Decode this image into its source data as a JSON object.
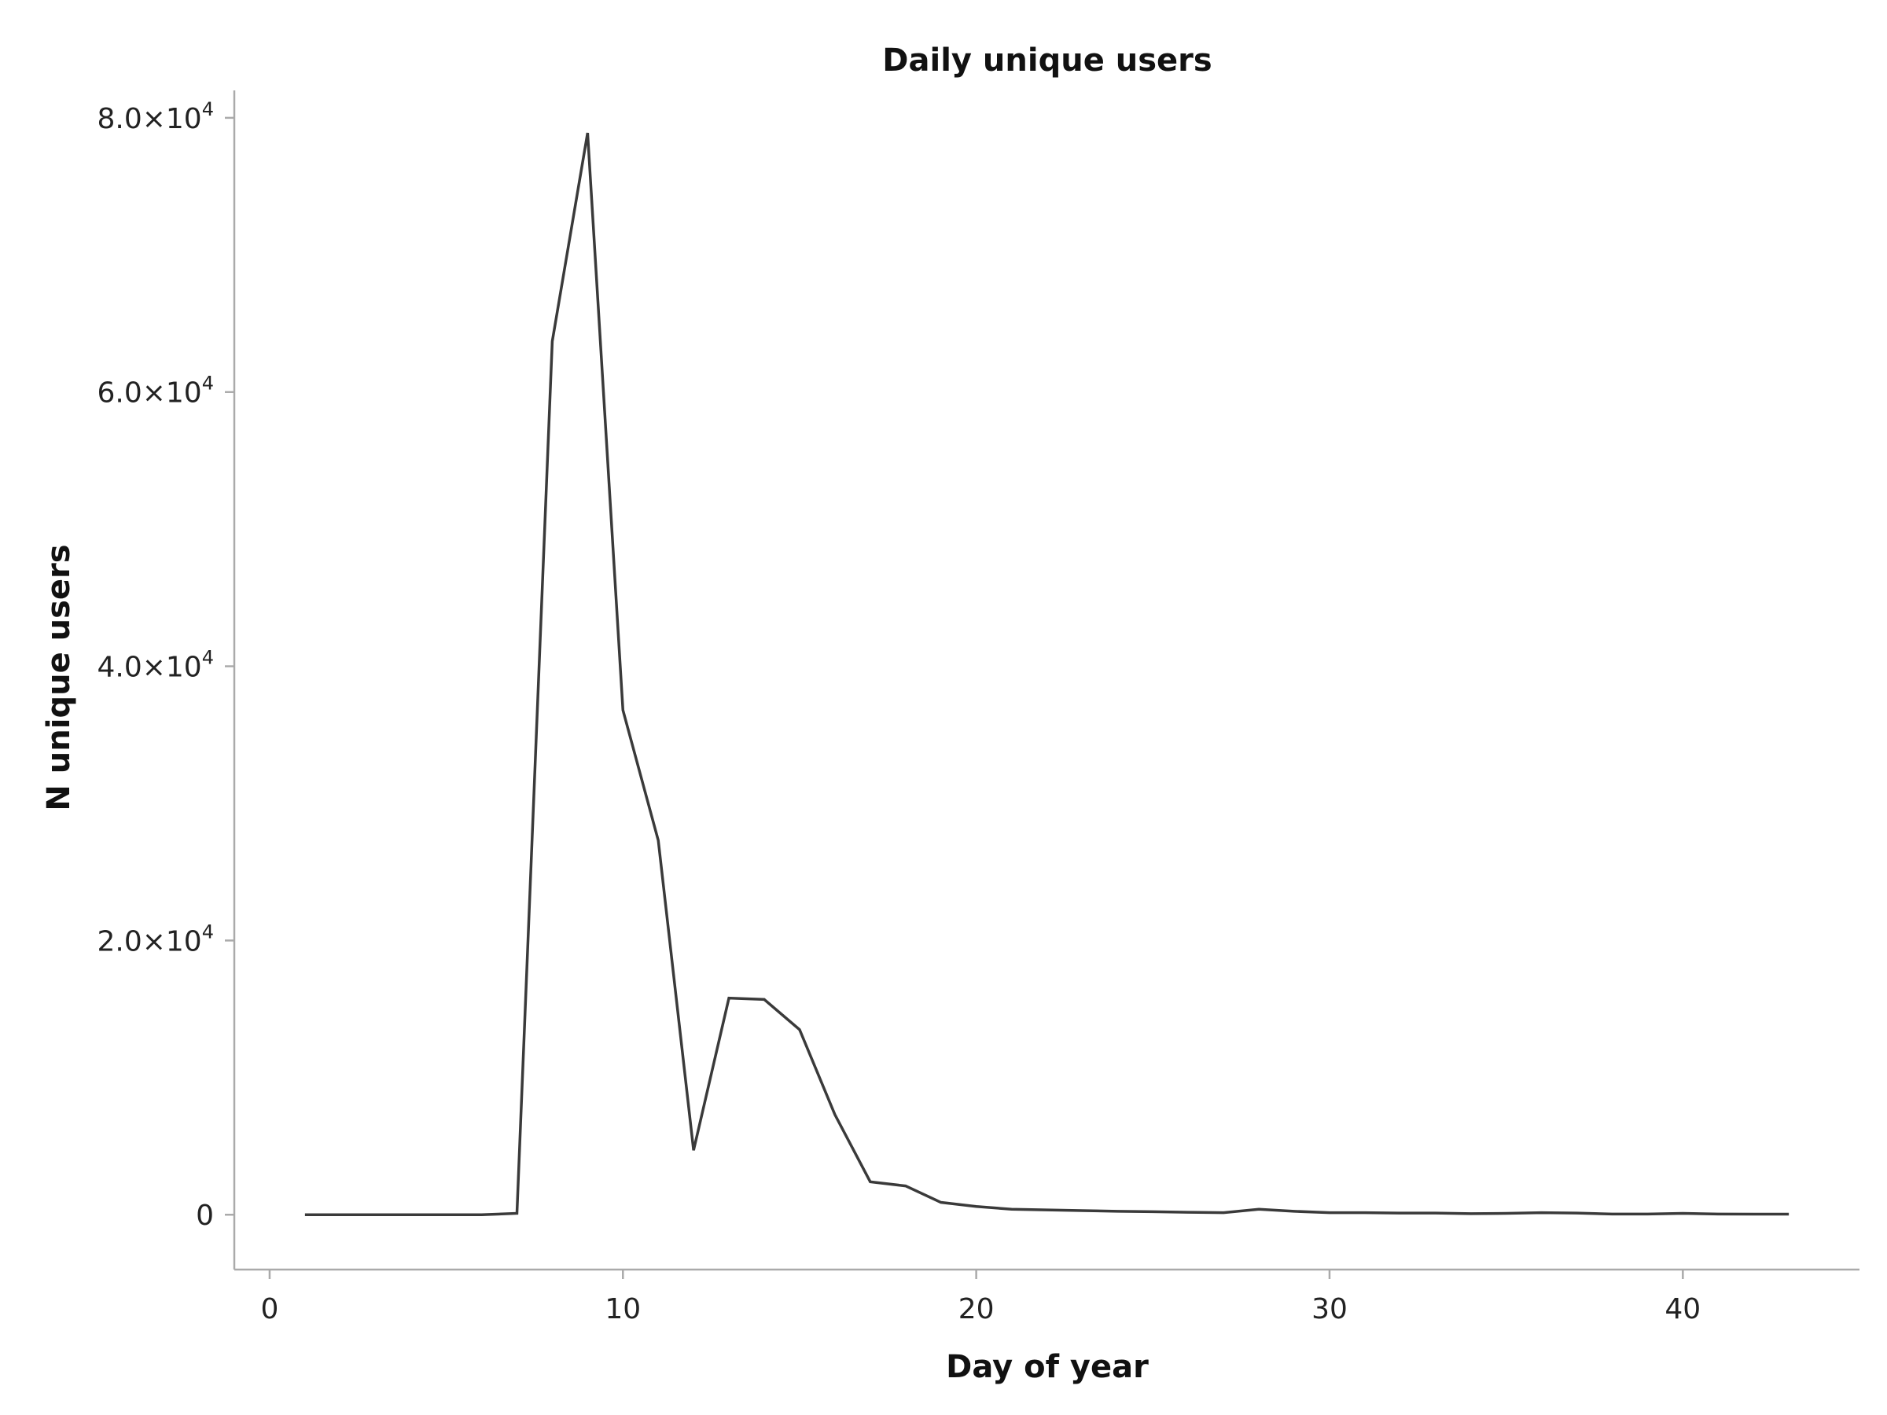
{
  "chart_data": {
    "type": "line",
    "title": "Daily unique users",
    "xlabel": "Day of year",
    "ylabel": "N unique users",
    "xlim": [
      -1,
      45
    ],
    "ylim": [
      -4000,
      82000
    ],
    "x_ticks": [
      {
        "value": 0,
        "label": "0"
      },
      {
        "value": 10,
        "label": "10"
      },
      {
        "value": 20,
        "label": "20"
      },
      {
        "value": 30,
        "label": "30"
      },
      {
        "value": 40,
        "label": "40"
      }
    ],
    "y_ticks": [
      {
        "value": 0,
        "mantissa": "0",
        "exp": ""
      },
      {
        "value": 20000,
        "mantissa": "2.0×10",
        "exp": "4"
      },
      {
        "value": 40000,
        "mantissa": "4.0×10",
        "exp": "4"
      },
      {
        "value": 60000,
        "mantissa": "6.0×10",
        "exp": "4"
      },
      {
        "value": 80000,
        "mantissa": "8.0×10",
        "exp": "4"
      }
    ],
    "grid": false,
    "line_color": "#3a3a3a",
    "axis_color": "#aaaaaa",
    "x": [
      1,
      2,
      3,
      4,
      5,
      6,
      7,
      8,
      9,
      10,
      11,
      12,
      13,
      14,
      15,
      16,
      17,
      18,
      19,
      20,
      21,
      22,
      23,
      24,
      25,
      26,
      27,
      28,
      29,
      30,
      31,
      32,
      33,
      34,
      35,
      36,
      37,
      38,
      39,
      40,
      41,
      42,
      43
    ],
    "y": [
      0,
      0,
      0,
      0,
      0,
      0,
      100,
      63700,
      78900,
      36800,
      27300,
      4700,
      15800,
      15700,
      13500,
      7300,
      2400,
      2100,
      900,
      600,
      400,
      350,
      300,
      250,
      220,
      180,
      150,
      400,
      250,
      150,
      150,
      120,
      120,
      80,
      100,
      150,
      120,
      50,
      50,
      100,
      50,
      40,
      40
    ]
  }
}
